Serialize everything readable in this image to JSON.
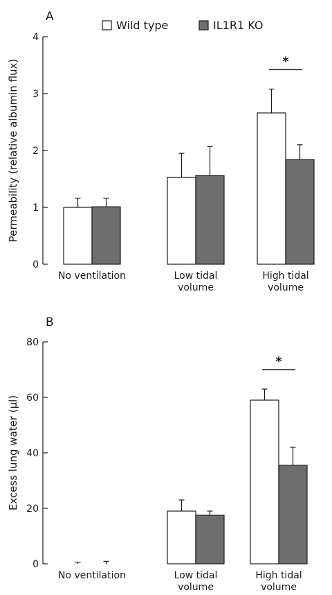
{
  "legend": {
    "entries": [
      {
        "label": "Wild type",
        "color": "#ffffff"
      },
      {
        "label": "IL1R1 KO",
        "color": "#6e6e6e"
      }
    ],
    "placement": "top-right"
  },
  "chart_data": [
    {
      "type": "bar",
      "panel_label": "A",
      "ylabel": "Permeability (relative albumin flux)",
      "categories": [
        [
          "No ventilation"
        ],
        [
          "Low tidal",
          "volume"
        ],
        [
          "High tidal",
          "volume"
        ]
      ],
      "ylim": [
        0,
        4
      ],
      "yticks": [
        0,
        1,
        2,
        3,
        4
      ],
      "series": [
        {
          "name": "Wild type",
          "values": [
            1.0,
            1.53,
            2.66
          ],
          "errors": [
            0.16,
            0.42,
            0.42
          ],
          "color": "#ffffff"
        },
        {
          "name": "IL1R1 KO",
          "values": [
            1.01,
            1.56,
            1.84
          ],
          "errors": [
            0.15,
            0.51,
            0.26
          ],
          "color": "#6e6e6e"
        }
      ],
      "significance": [
        {
          "category_index": 2,
          "label": "*"
        }
      ],
      "grid": false
    },
    {
      "type": "bar",
      "panel_label": "B",
      "ylabel": "Excess lung water (µl)",
      "categories": [
        [
          "No ventilation"
        ],
        [
          "Low tidal",
          "volume"
        ],
        [
          "High tidal",
          "volume"
        ]
      ],
      "ylim": [
        0,
        80
      ],
      "yticks": [
        0,
        20,
        40,
        60,
        80
      ],
      "series": [
        {
          "name": "Wild type",
          "values": [
            0,
            19,
            59
          ],
          "errors": [
            0.6,
            4,
            4
          ],
          "color": "#ffffff"
        },
        {
          "name": "IL1R1 KO",
          "values": [
            0,
            17.5,
            35.5
          ],
          "errors": [
            0.9,
            1.5,
            6.5
          ],
          "color": "#6e6e6e"
        }
      ],
      "significance": [
        {
          "category_index": 2,
          "label": "*"
        }
      ],
      "grid": false
    }
  ]
}
